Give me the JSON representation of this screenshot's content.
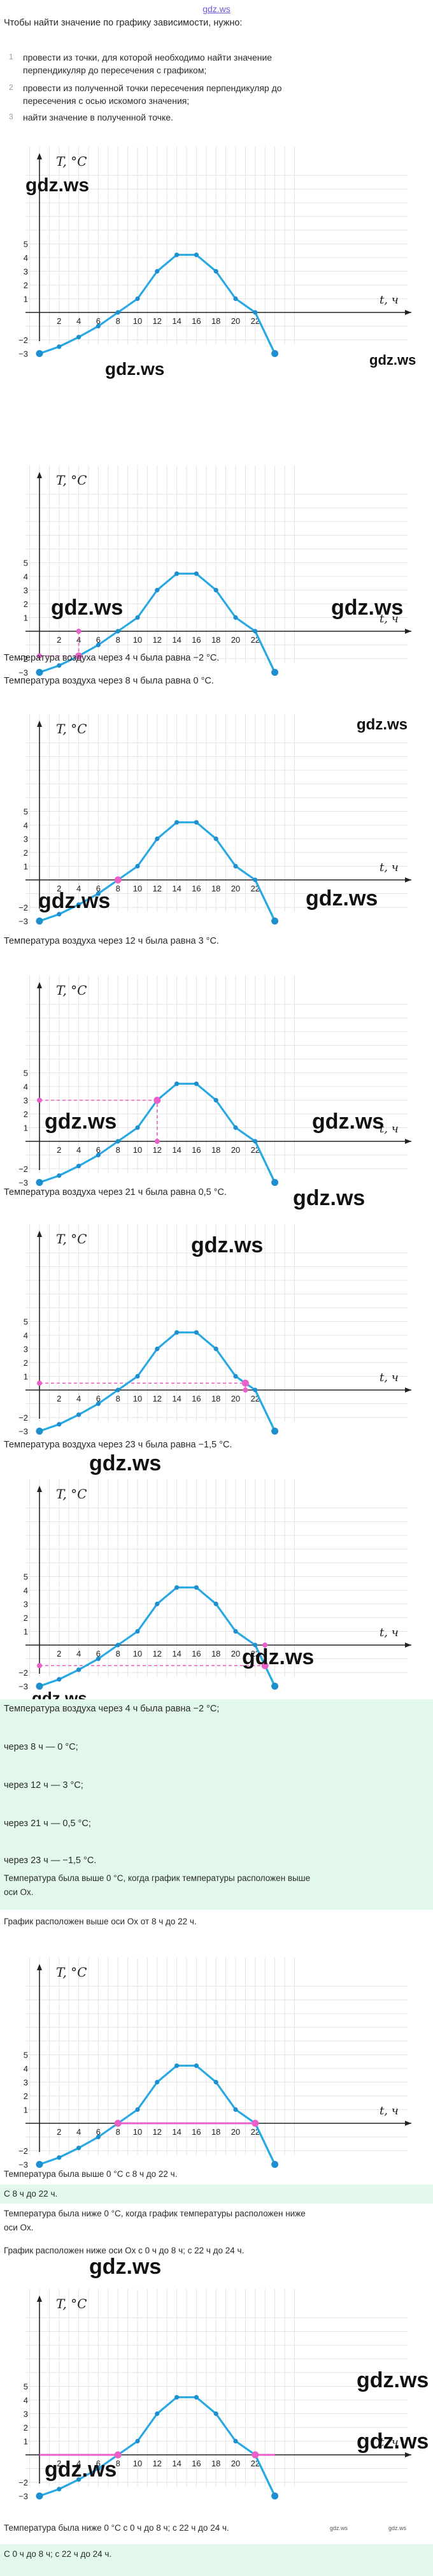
{
  "header": {
    "link": "gdz.ws"
  },
  "intro": {
    "title": "Чтобы найти значение по графику зависимости, нужно:",
    "steps": [
      {
        "n": "1",
        "lines": [
          "провести из точки, для которой необходимо найти значение",
          "перпендикуляр до пересечения с графиком;"
        ]
      },
      {
        "n": "2",
        "lines": [
          "провести из полученной точки пересечения перпендикуляр до",
          "пересечения с осью искомого значения;"
        ]
      },
      {
        "n": "3",
        "lines": [
          "найти значение в полученной точке."
        ]
      }
    ]
  },
  "watermark": "gdz.ws",
  "chart_labels": {
    "y_axis": "T, °C",
    "x_axis": "t, ч",
    "y_ticks": [
      "5",
      "4",
      "3",
      "2",
      "1",
      "−2",
      "−3"
    ],
    "x_ticks": [
      "2",
      "4",
      "6",
      "8",
      "10",
      "12",
      "14",
      "16",
      "18",
      "20",
      "22"
    ]
  },
  "chart_data": [
    {
      "type": "line",
      "x": [
        0,
        2,
        4,
        6,
        8,
        10,
        12,
        14,
        16,
        18,
        20,
        22,
        24
      ],
      "series": [
        {
          "values": [
            -3,
            -2.5,
            -1.8,
            -1,
            0,
            1,
            3,
            4.2,
            4.2,
            3,
            1,
            0,
            -3
          ]
        }
      ],
      "xlabel": "t, ч",
      "ylabel": "T, °C",
      "ylim": [
        -3,
        5
      ],
      "xlim": [
        0,
        24
      ],
      "grid": true
    }
  ],
  "answers": {
    "a1": "Температура воздуха через 4 ч была равна −2 °C.",
    "a2": "Температура воздуха через 8 ч была равна 0 °C.",
    "a3": "Температура воздуха через 12 ч была равна 3 °C.",
    "a4": "Температура воздуха через 21 ч была равна 0,5 °C.",
    "a5": "Температура воздуха через 23 ч была равна −1,5 °C."
  },
  "summary1": [
    "Температура воздуха через 4 ч была равна −2 °C;",
    "через 8 ч — 0 °C;",
    "через 12 ч — 3 °C;",
    "через 21 ч — 0,5 °C;",
    "через 23 ч — −1,5 °C."
  ],
  "above": {
    "l1": "Температура была выше 0 °C, когда график температуры расположен выше",
    "l2": "оси Ox.",
    "l3": "График расположен выше оси Ox от 8 ч до 22 ч.",
    "result": "Температура была выше 0 °C с 8 ч до 22 ч.",
    "boxed": "С 8 ч до 22 ч."
  },
  "below": {
    "l1": "Температура была ниже 0 °C, когда график температуры расположен ниже",
    "l2": "оси Ox.",
    "l3": "График расположен ниже оси Ox с 0 ч до 8 ч; с 22 ч до 24 ч.",
    "result": "Температура была ниже 0 °C с 0 ч до 8 ч; с 22 ч до 24 ч.",
    "boxed": "С 0 ч до 8 ч; с 22 ч до 24 ч.",
    "footer_wm1": "gdz.ws",
    "footer_wm2": "gdz.ws"
  },
  "colors": {
    "curve": "#29a9e3",
    "point": "#1d8fcf",
    "highlight": "#e860c8",
    "guide": "#ee5bbf",
    "grid": "#e3e3e3",
    "answer_box": "#e2f8ea",
    "link": "#6b5bd6"
  }
}
